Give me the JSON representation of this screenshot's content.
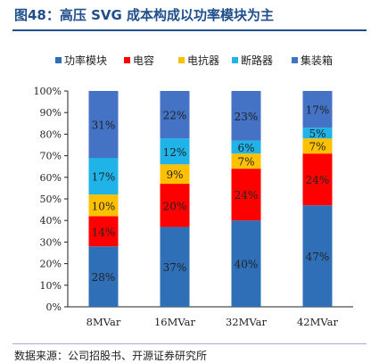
{
  "title": "图48：高压 SVG 成本构成以功率模块为主",
  "source": "数据来源：公司招股书、开源证券研究所",
  "chart_data": {
    "type": "bar",
    "stacked": true,
    "categories": [
      "8MVar",
      "16MVar",
      "32MVar",
      "42MVar"
    ],
    "series": [
      {
        "name": "功率模块",
        "color": "#2e6fb8",
        "values": [
          28,
          37,
          40,
          47
        ],
        "labels": [
          "28%",
          "37%",
          "40%",
          "47%"
        ]
      },
      {
        "name": "电容",
        "color": "#ff0000",
        "values": [
          14,
          20,
          24,
          24
        ],
        "labels": [
          "14%",
          "20%",
          "24%",
          "24%"
        ]
      },
      {
        "name": "电抗器",
        "color": "#ffc000",
        "values": [
          10,
          9,
          7,
          7
        ],
        "labels": [
          "10%",
          "9%",
          "7%",
          "7%"
        ]
      },
      {
        "name": "断路器",
        "color": "#1fb3e8",
        "values": [
          17,
          12,
          6,
          5
        ],
        "labels": [
          "17%",
          "12%",
          "6%",
          "5%"
        ]
      },
      {
        "name": "集装箱",
        "color": "#4472c4",
        "values": [
          31,
          22,
          23,
          17
        ],
        "labels": [
          "31%",
          "22%",
          "23%",
          "17%"
        ]
      }
    ],
    "ylim": [
      0,
      100
    ],
    "yticks": [
      "0%",
      "10%",
      "20%",
      "30%",
      "40%",
      "50%",
      "60%",
      "70%",
      "80%",
      "90%",
      "100%"
    ],
    "legend": "top",
    "grid": false
  }
}
